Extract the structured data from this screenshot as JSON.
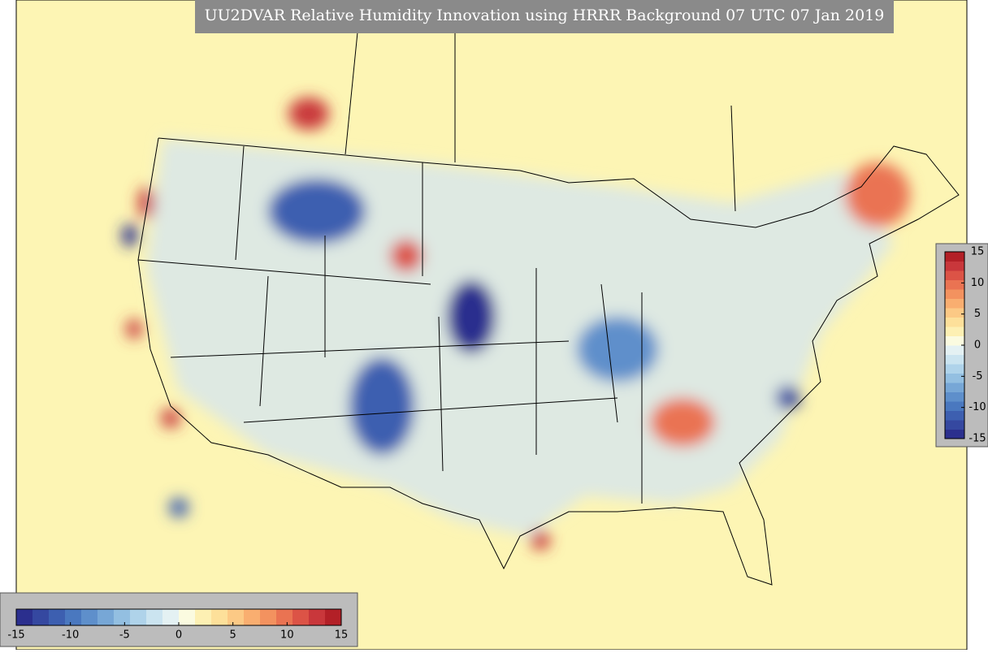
{
  "title": "UU2DVAR Relative Humidity Innovation using HRRR Background 07 UTC 07 Jan 2019",
  "colorbars": [
    {
      "orientation": "horizontal",
      "lim": [
        -15,
        15
      ],
      "ticks": [
        -15,
        -10,
        -5,
        0,
        5,
        10,
        15
      ]
    },
    {
      "orientation": "vertical",
      "lim": [
        -15,
        15
      ],
      "ticks": [
        15,
        10,
        5,
        0,
        -5,
        -10,
        -15
      ]
    }
  ],
  "colors": [
    "#2b2f8e",
    "#3548a0",
    "#3d5fb0",
    "#4a78bf",
    "#5e8fcb",
    "#77a7d6",
    "#93bfe1",
    "#afd3ea",
    "#cbe4f0",
    "#e4f1f3",
    "#fbfbe0",
    "#fdf0b3",
    "#fde09a",
    "#fcc985",
    "#f9ae70",
    "#f3925f",
    "#ea7352",
    "#dc5346",
    "#c9373b",
    "#b32027"
  ]
}
